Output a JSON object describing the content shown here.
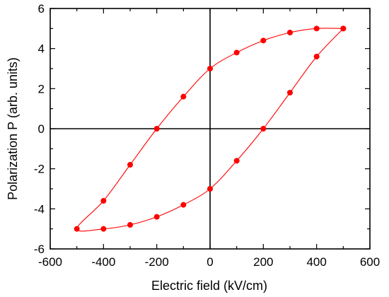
{
  "chart_data": {
    "type": "line",
    "xlabel": "Electric field (kV/cm)",
    "ylabel": "Polarization P (arb. units)",
    "xlim": [
      -600,
      600
    ],
    "ylim": [
      -6,
      6
    ],
    "xticks": [
      -600,
      -400,
      -200,
      0,
      200,
      400,
      600
    ],
    "yticks": [
      -6,
      -4,
      -2,
      0,
      2,
      4,
      6
    ],
    "xtick_labels": [
      "-600",
      "-400",
      "-200",
      "0",
      "200",
      "400",
      "600"
    ],
    "ytick_labels": [
      "-6",
      "-4",
      "-2",
      "0",
      "2",
      "4",
      "6"
    ],
    "reference_lines": {
      "x": 0,
      "y": 0
    },
    "grid": false,
    "legend": "none",
    "series": [
      {
        "color": "#ff0000",
        "marker": "circle",
        "curve": "smooth",
        "x": [
          500,
          400,
          300,
          200,
          100,
          0,
          -100,
          -200,
          -300,
          -400,
          -500,
          -400,
          -300,
          -200,
          -100,
          0,
          100,
          200,
          300,
          400,
          500
        ],
        "y": [
          5,
          5,
          4.8,
          4.4,
          3.8,
          3,
          1.6,
          0,
          -1.8,
          -3.6,
          -5,
          -5,
          -4.8,
          -4.4,
          -3.8,
          -3,
          -1.6,
          0,
          1.8,
          3.6,
          5
        ]
      }
    ]
  }
}
